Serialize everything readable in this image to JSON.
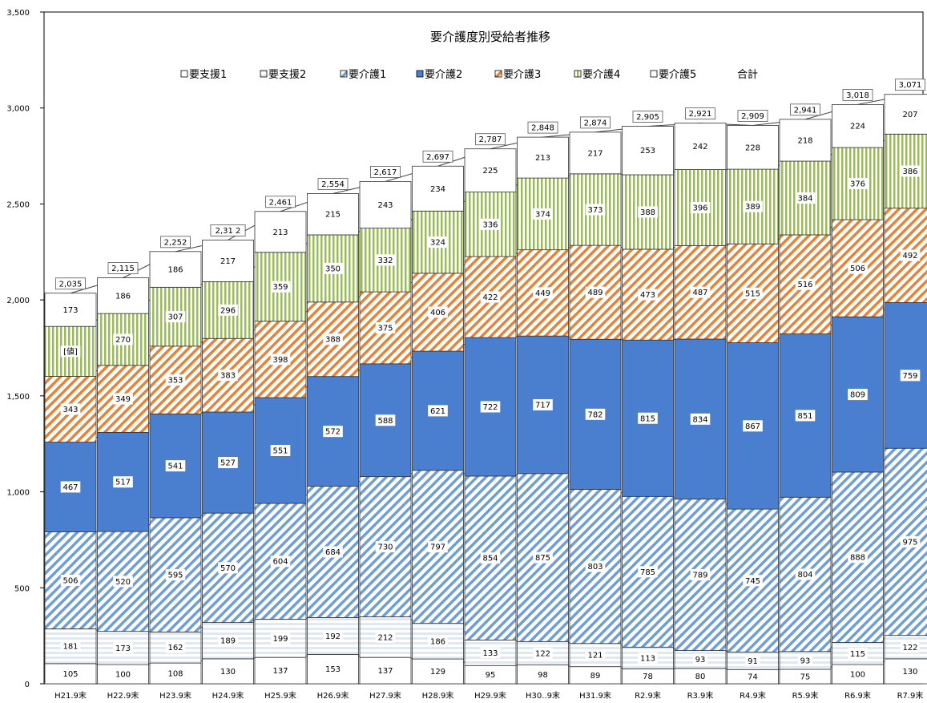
{
  "chart_data": {
    "type": "bar",
    "stacked": true,
    "title": "要介護度別受給者推移",
    "categories": [
      "H21.9末",
      "H22.9末",
      "H23.9末",
      "H24.9末",
      "H25.9末",
      "H26.9末",
      "H27.9末",
      "H28.9末",
      "H29.9末",
      "H30..9末",
      "H31.9末",
      "R2.9末",
      "R3.9末",
      "R4.9末",
      "R5.9末",
      "R6.9末",
      "R7.9末"
    ],
    "series": [
      {
        "name": "要支援1",
        "values": [
          105,
          100,
          108,
          130,
          137,
          153,
          137,
          129,
          95,
          98,
          89,
          78,
          80,
          74,
          75,
          100,
          130
        ],
        "color": "#ffffff"
      },
      {
        "name": "要支援2",
        "values": [
          181,
          173,
          162,
          189,
          199,
          192,
          212,
          186,
          133,
          122,
          121,
          113,
          93,
          91,
          93,
          115,
          122
        ],
        "color": "#ffffff"
      },
      {
        "name": "要介護1",
        "values": [
          506,
          520,
          595,
          570,
          604,
          684,
          730,
          797,
          854,
          875,
          803,
          785,
          789,
          745,
          804,
          888,
          975
        ],
        "color": "#4f81bd"
      },
      {
        "name": "要介護2",
        "values": [
          467,
          517,
          541,
          527,
          551,
          572,
          588,
          621,
          722,
          717,
          782,
          815,
          834,
          867,
          851,
          809,
          759
        ],
        "color": "#4a7fcf"
      },
      {
        "name": "要介護3",
        "values": [
          343,
          349,
          353,
          383,
          398,
          388,
          375,
          406,
          422,
          449,
          489,
          473,
          487,
          515,
          516,
          506,
          492
        ],
        "color": "#e2843a"
      },
      {
        "name": "要介護4",
        "values": [
          260,
          270,
          307,
          296,
          359,
          350,
          332,
          324,
          336,
          374,
          373,
          388,
          396,
          389,
          384,
          376,
          386
        ],
        "color": "#9bbb59"
      },
      {
        "name": "要介護5",
        "values": [
          173,
          186,
          186,
          217,
          213,
          215,
          243,
          234,
          225,
          213,
          217,
          253,
          242,
          228,
          218,
          224,
          207
        ],
        "color": "#ffffff"
      }
    ],
    "segment_labels": {
      "要介護4": [
        "[値]",
        "270",
        "307",
        "296",
        "359",
        "350",
        "332",
        "324",
        "336",
        "374",
        "373",
        "388",
        "396",
        "389",
        "384",
        "376",
        "386"
      ]
    },
    "totals_name": "合計",
    "totals": [
      "2,035",
      "2,115",
      "2,252",
      "2,31 2",
      "2,461",
      "2,554",
      "2,617",
      "2,697",
      "2,787",
      "2,848",
      "2,874",
      "2,905",
      "2,921",
      "2,909",
      "2,941",
      "3,018",
      "3,071"
    ],
    "yticks": [
      "0",
      "500",
      "1,000",
      "1,500",
      "2,000",
      "2,500",
      "3,000",
      "3,500"
    ],
    "ylim": [
      0,
      3500
    ],
    "grid": false,
    "legend_position": "top",
    "xlabel": "",
    "ylabel": ""
  }
}
